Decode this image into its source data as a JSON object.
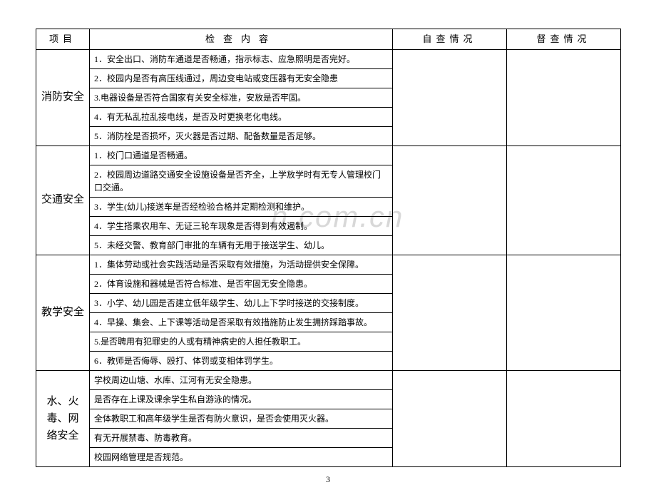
{
  "headers": {
    "project": "项目",
    "content": "检查内容",
    "self_check": "自查情况",
    "supervise": "督查情况"
  },
  "sections": [
    {
      "category": "消防安全",
      "items": [
        "1．安全出口、消防车通道是否畅通，指示标志、应急照明是否完好。",
        "2．校园内是否有高压线通过，周边变电站或变压器有无安全隐患",
        "3.电器设备是否符合国家有关安全标准，安放是否牢固。",
        "4．有无私乱拉乱接电线，是否及时更换老化电线。",
        "5．消防栓是否损坏，灭火器是否过期、配备数量是否足够。"
      ]
    },
    {
      "category": "交通安全",
      "items": [
        "1．校门口通道是否畅通。",
        "2．校园周边道路交通安全设施设备是否齐全，上学放学时有无专人管理校门口交通。",
        "3．学生(幼儿)接送车是否经检验合格并定期检测和维护。",
        "4．学生搭乘农用车、无证三轮车现象是否得到有效遏制。",
        "5．未经交警、教育部门审批的车辆有无用于接送学生、幼儿。"
      ]
    },
    {
      "category": "教学安全",
      "items": [
        "1．集体劳动或社会实践活动是否采取有效措施，为活动提供安全保障。",
        "2．体育设施和器械是否符合标准、是否牢固无安全隐患。",
        "3．小学、幼儿园是否建立低年级学生、幼儿上下学时接送的交接制度。",
        "4．早操、集会、上下课等活动是否采取有效措施防止发生拥挤踩踏事故。",
        "5.是否聘用有犯罪史的人或有精神病史的人担任教职工。",
        "6．教师是否侮辱、殴打、体罚或变相体罚学生。"
      ]
    },
    {
      "category": "水、火毒、网络安全",
      "items": [
        "学校周边山塘、水库、江河有无安全隐患。",
        "是否存在上课及课余学生私自游泳的情况。",
        "全体教职工和高年级学生是否有防火意识，是否会使用灭火器。",
        "有无开展禁毒、防毒教育。",
        "校园网络管理是否规范。"
      ]
    }
  ],
  "watermark": "n.com.cn",
  "page_number": "3"
}
